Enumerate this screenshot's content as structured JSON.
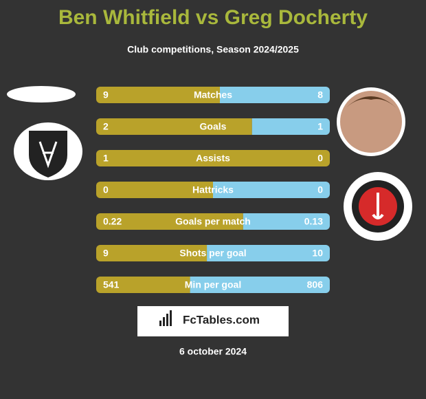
{
  "header": {
    "title": "Ben Whitfield vs Greg Docherty",
    "subtitle": "Club competitions, Season 2024/2025"
  },
  "colors": {
    "left": "#b9a22a",
    "right": "#87ceeb"
  },
  "rows": [
    {
      "label": "Matches",
      "left": 9,
      "right": 8
    },
    {
      "label": "Goals",
      "left": 2,
      "right": 1
    },
    {
      "label": "Assists",
      "left": 1,
      "right": 0
    },
    {
      "label": "Hattricks",
      "left": 0,
      "right": 0
    },
    {
      "label": "Goals per match",
      "left": 0.22,
      "right": 0.13
    },
    {
      "label": "Shots per goal",
      "left": 9,
      "right": 10
    },
    {
      "label": "Min per goal",
      "left": 541,
      "right": 806
    }
  ],
  "footer": {
    "brand": "FcTables.com",
    "date": "6 october 2024"
  }
}
